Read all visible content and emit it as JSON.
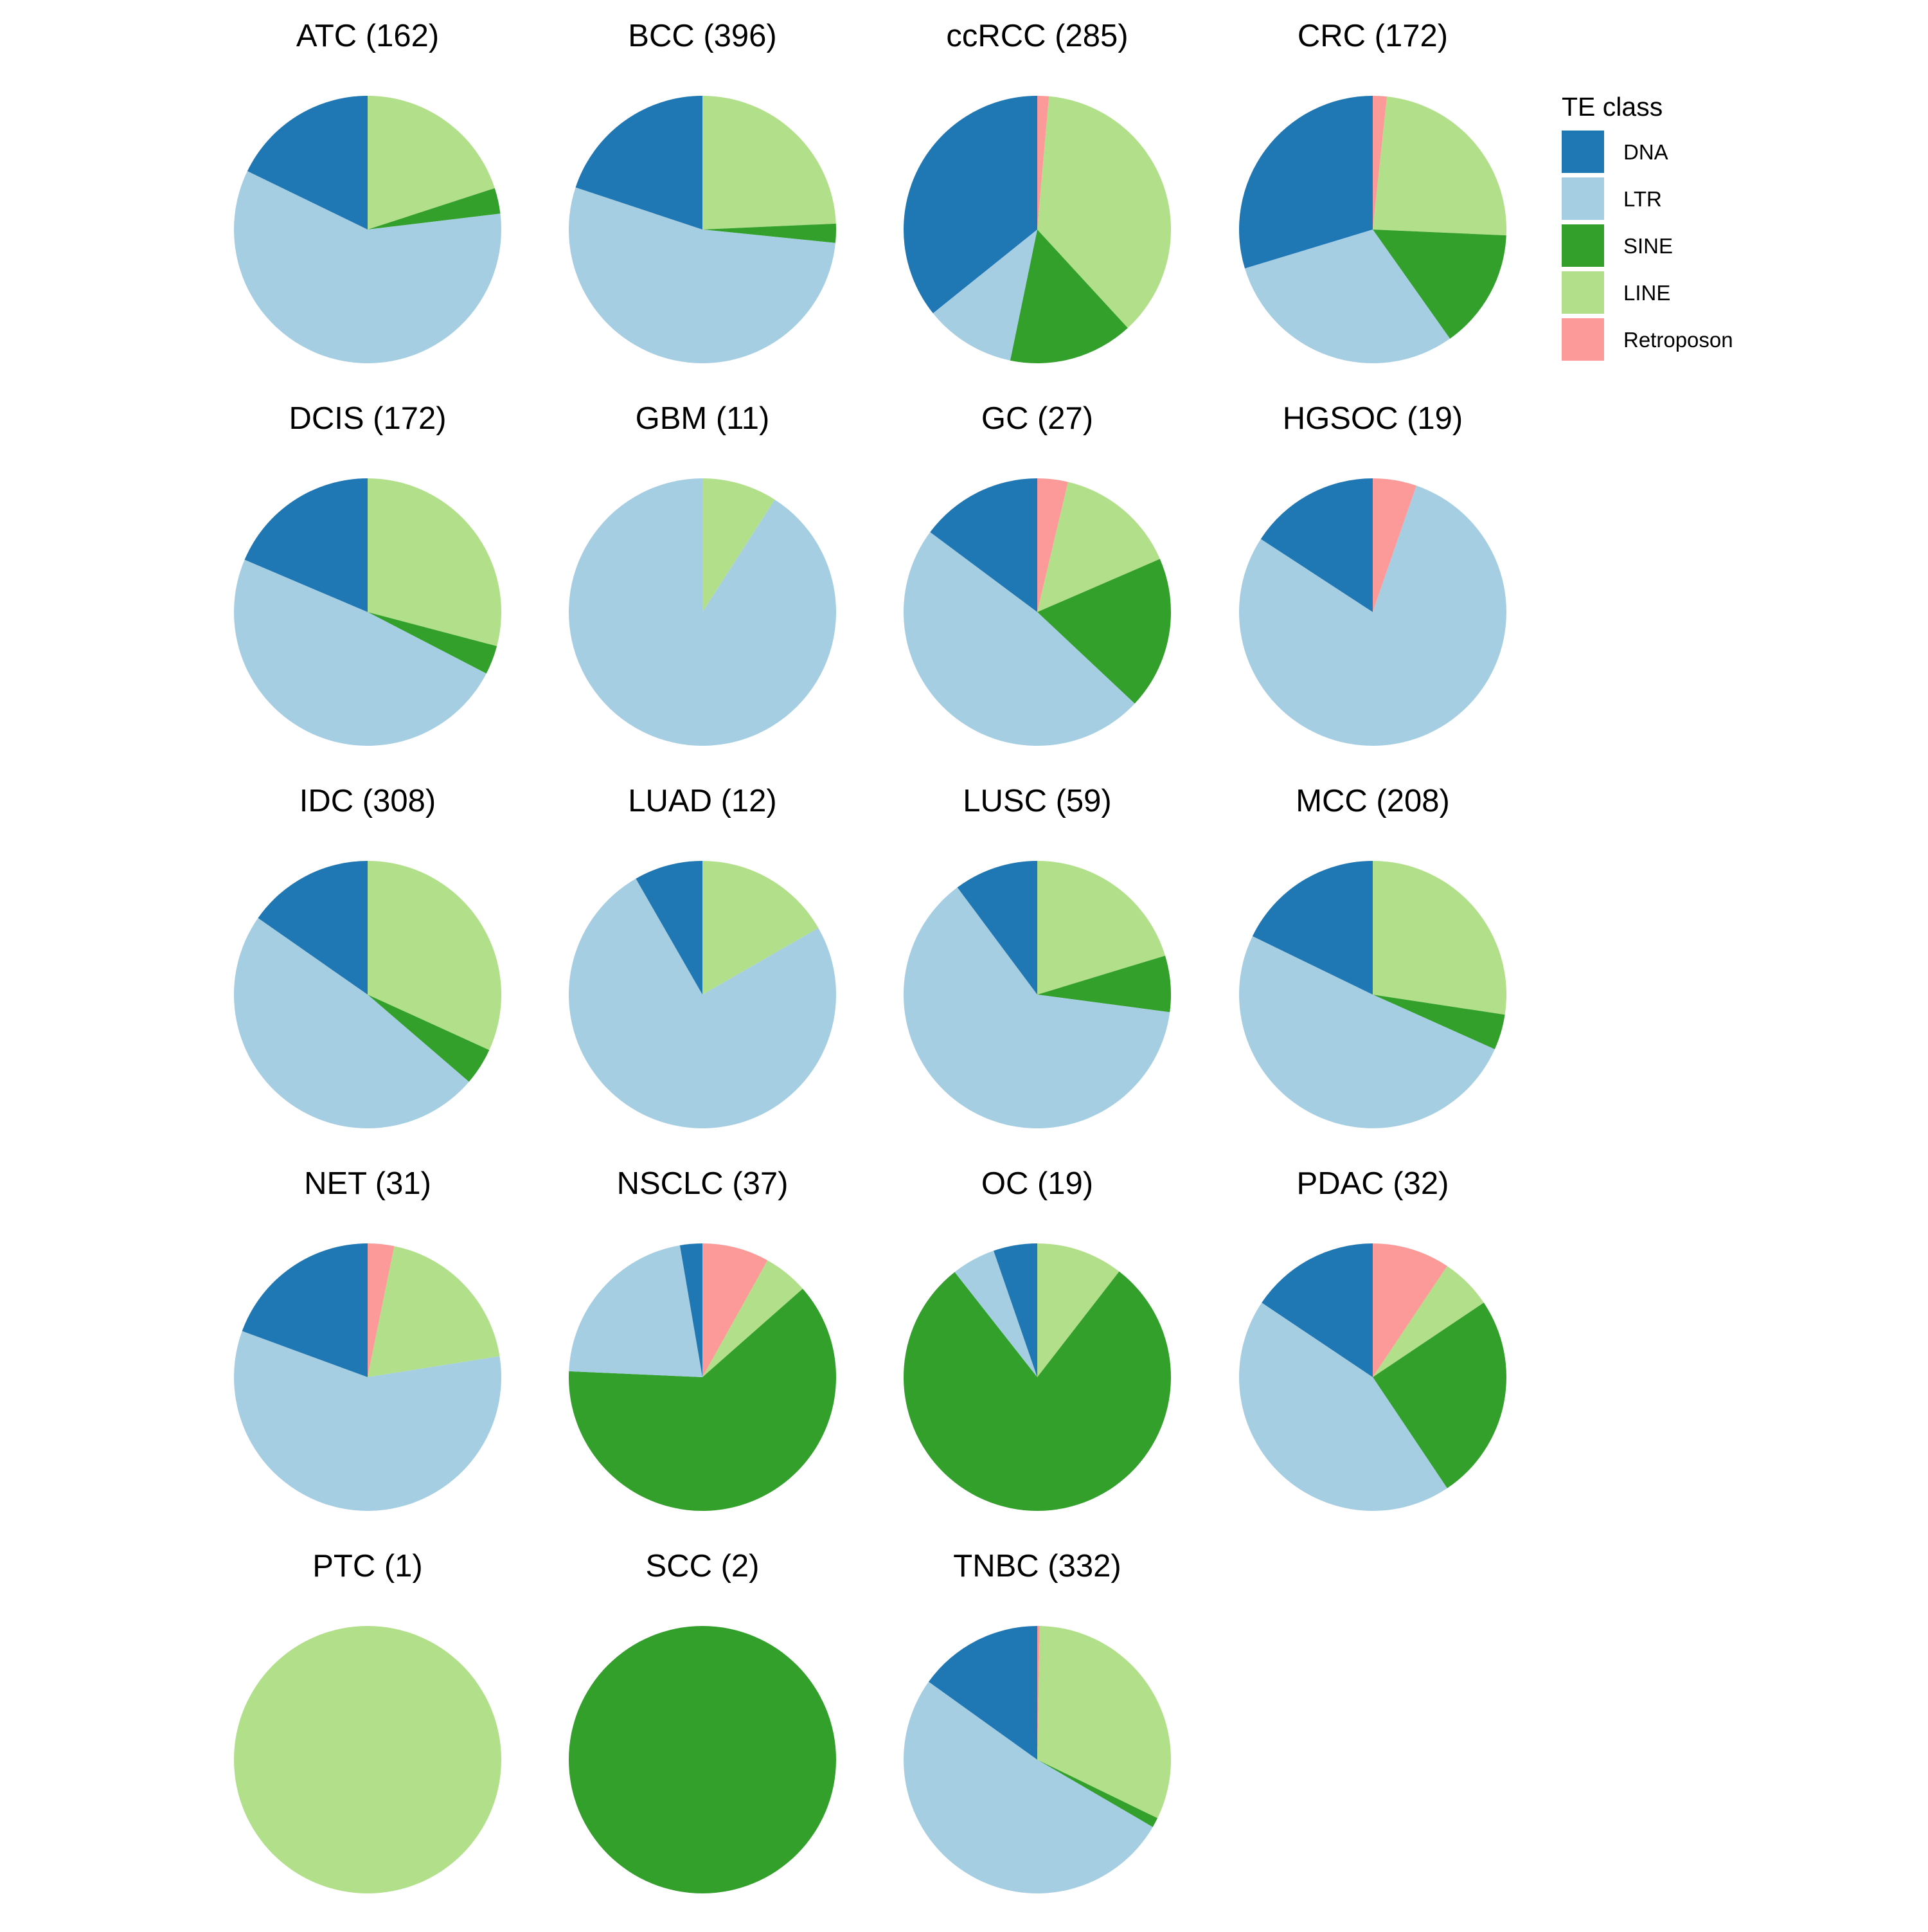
{
  "chart_data": {
    "type": "pie",
    "legend": {
      "title": "TE class",
      "position": "right"
    },
    "classes": [
      {
        "name": "DNA",
        "color": "#1F78B4"
      },
      {
        "name": "LTR",
        "color": "#A6CEE3"
      },
      {
        "name": "SINE",
        "color": "#33A02C"
      },
      {
        "name": "LINE",
        "color": "#B2DF8A"
      },
      {
        "name": "Retroposon",
        "color": "#FB9A99"
      }
    ],
    "slice_order_clockwise_from_top": [
      "Retroposon",
      "LINE",
      "SINE",
      "LTR",
      "DNA"
    ],
    "panels": [
      {
        "title": "ATC (162)",
        "values": {
          "DNA": 0.178,
          "LTR": 0.591,
          "SINE": 0.031,
          "LINE": 0.2,
          "Retroposon": 0
        }
      },
      {
        "title": "BCC (396)",
        "values": {
          "DNA": 0.199,
          "LTR": 0.535,
          "SINE": 0.023,
          "LINE": 0.243,
          "Retroposon": 0
        }
      },
      {
        "title": "ccRCC (285)",
        "values": {
          "DNA": 0.358,
          "LTR": 0.11,
          "SINE": 0.151,
          "LINE": 0.368,
          "Retroposon": 0.014
        }
      },
      {
        "title": "CRC (172)",
        "values": {
          "DNA": 0.297,
          "LTR": 0.301,
          "SINE": 0.145,
          "LINE": 0.24,
          "Retroposon": 0.017
        }
      },
      {
        "title": "DCIS (172)",
        "values": {
          "DNA": 0.186,
          "LTR": 0.488,
          "SINE": 0.035,
          "LINE": 0.291,
          "Retroposon": 0
        }
      },
      {
        "title": "GBM (11)",
        "values": {
          "DNA": 0,
          "LTR": 0.909,
          "SINE": 0,
          "LINE": 0.091,
          "Retroposon": 0
        }
      },
      {
        "title": "GC (27)",
        "values": {
          "DNA": 0.148,
          "LTR": 0.482,
          "SINE": 0.185,
          "LINE": 0.148,
          "Retroposon": 0.037
        }
      },
      {
        "title": "HGSOC (19)",
        "values": {
          "DNA": 0.158,
          "LTR": 0.789,
          "SINE": 0,
          "LINE": 0,
          "Retroposon": 0.053
        }
      },
      {
        "title": "IDC (308)",
        "values": {
          "DNA": 0.153,
          "LTR": 0.484,
          "SINE": 0.045,
          "LINE": 0.318,
          "Retroposon": 0
        }
      },
      {
        "title": "LUAD (12)",
        "values": {
          "DNA": 0.083,
          "LTR": 0.75,
          "SINE": 0,
          "LINE": 0.167,
          "Retroposon": 0
        }
      },
      {
        "title": "LUSC (59)",
        "values": {
          "DNA": 0.102,
          "LTR": 0.627,
          "SINE": 0.068,
          "LINE": 0.203,
          "Retroposon": 0
        }
      },
      {
        "title": "MCC (208)",
        "values": {
          "DNA": 0.178,
          "LTR": 0.505,
          "SINE": 0.043,
          "LINE": 0.274,
          "Retroposon": 0
        }
      },
      {
        "title": "NET (31)",
        "values": {
          "DNA": 0.194,
          "LTR": 0.581,
          "SINE": 0,
          "LINE": 0.193,
          "Retroposon": 0.032
        }
      },
      {
        "title": "NSCLC (37)",
        "values": {
          "DNA": 0.027,
          "LTR": 0.216,
          "SINE": 0.622,
          "LINE": 0.054,
          "Retroposon": 0.081
        }
      },
      {
        "title": "OC (19)",
        "values": {
          "DNA": 0.053,
          "LTR": 0.053,
          "SINE": 0.789,
          "LINE": 0.105,
          "Retroposon": 0
        }
      },
      {
        "title": "PDAC (32)",
        "values": {
          "DNA": 0.156,
          "LTR": 0.438,
          "SINE": 0.25,
          "LINE": 0.062,
          "Retroposon": 0.094
        }
      },
      {
        "title": "PTC (1)",
        "values": {
          "DNA": 0,
          "LTR": 0,
          "SINE": 0,
          "LINE": 1,
          "Retroposon": 0
        }
      },
      {
        "title": "SCC (2)",
        "values": {
          "DNA": 0,
          "LTR": 0,
          "SINE": 1,
          "LINE": 0,
          "Retroposon": 0
        }
      },
      {
        "title": "TNBC (332)",
        "values": {
          "DNA": 0.151,
          "LTR": 0.515,
          "SINE": 0.012,
          "LINE": 0.319,
          "Retroposon": 0.003
        }
      }
    ]
  }
}
